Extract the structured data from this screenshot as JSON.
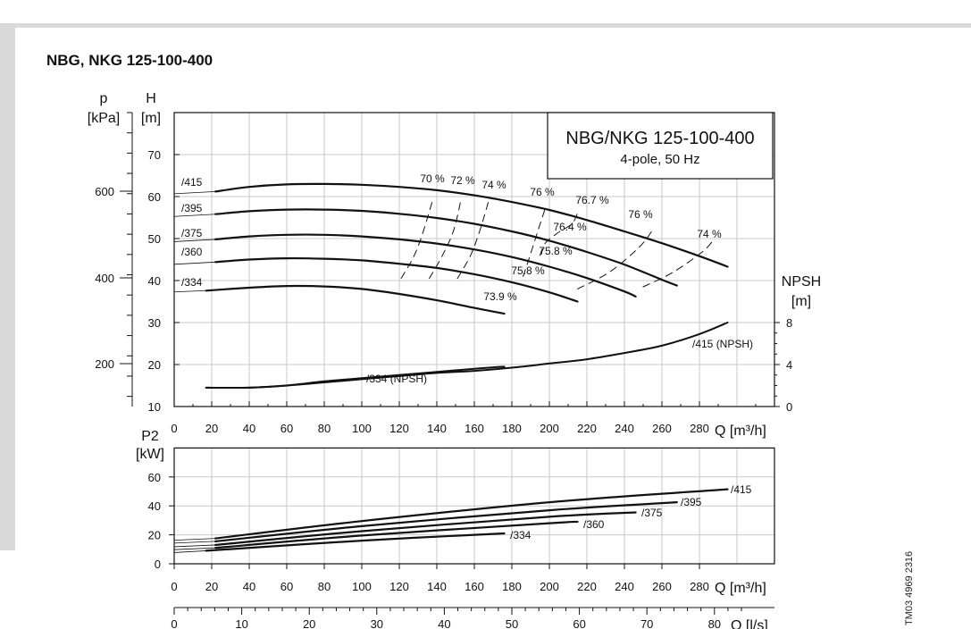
{
  "title": "NBG, NKG 125-100-400",
  "doc_code": "TM03 4969 2316",
  "colors": {
    "curve": "#111111",
    "grid": "#c8c8c8",
    "band": "#d9d9d9"
  },
  "chart_data": [
    {
      "type": "line",
      "name": "head",
      "title": "NBG/NKG 125-100-400",
      "subtitle": "4-pole, 50 Hz",
      "xlabel": "Q [m³/h]",
      "ylabel": "H [m]",
      "ylabel_parts": [
        "H",
        "[m]"
      ],
      "ylabel2_parts": [
        "p",
        "[kPa]"
      ],
      "xlim": [
        0,
        320
      ],
      "ylim": [
        10,
        80
      ],
      "x_ticks": [
        0,
        20,
        40,
        60,
        80,
        100,
        120,
        140,
        160,
        180,
        200,
        220,
        240,
        260,
        280
      ],
      "y_ticks": [
        10,
        20,
        30,
        40,
        50,
        60,
        70
      ],
      "p_ticks": [
        200,
        400,
        600
      ],
      "grid": true,
      "series": [
        {
          "name": "/415",
          "x": [
            22,
            40,
            60,
            80,
            100,
            120,
            140,
            160,
            180,
            200,
            220,
            240,
            260,
            280,
            295
          ],
          "y": [
            61.2,
            62.3,
            62.9,
            63.0,
            62.8,
            62.3,
            61.5,
            60.3,
            58.7,
            56.8,
            54.4,
            51.7,
            48.9,
            45.8,
            43.3
          ]
        },
        {
          "name": "/395",
          "x": [
            22,
            40,
            60,
            80,
            100,
            120,
            140,
            160,
            180,
            200,
            220,
            240,
            260,
            268
          ],
          "y": [
            55.8,
            56.5,
            56.9,
            56.9,
            56.6,
            55.9,
            54.9,
            53.5,
            51.7,
            49.5,
            46.8,
            43.8,
            40.2,
            38.8
          ]
        },
        {
          "name": "/375",
          "x": [
            22,
            40,
            60,
            80,
            100,
            120,
            140,
            160,
            180,
            200,
            220,
            240,
            246
          ],
          "y": [
            49.8,
            50.5,
            50.9,
            50.9,
            50.5,
            49.8,
            48.8,
            47.4,
            45.6,
            43.3,
            40.6,
            37.4,
            36.2
          ]
        },
        {
          "name": "/360",
          "x": [
            22,
            40,
            60,
            80,
            100,
            120,
            140,
            160,
            180,
            200,
            215
          ],
          "y": [
            44.4,
            45.0,
            45.3,
            45.2,
            44.8,
            44.0,
            43.0,
            41.5,
            39.6,
            37.2,
            35.0
          ]
        },
        {
          "name": "/334",
          "x": [
            17,
            40,
            60,
            80,
            100,
            120,
            140,
            160,
            176
          ],
          "y": [
            37.6,
            38.3,
            38.7,
            38.6,
            38.0,
            36.8,
            35.3,
            33.5,
            32.1
          ]
        },
        {
          "name": "/415 (NPSH)",
          "axis": "npsh",
          "x": [
            17,
            40,
            60,
            80,
            100,
            120,
            140,
            160,
            180,
            200,
            220,
            240,
            260,
            280,
            295
          ],
          "y": [
            1.8,
            1.8,
            2.0,
            2.3,
            2.6,
            2.9,
            3.2,
            3.4,
            3.7,
            4.1,
            4.5,
            5.1,
            5.8,
            6.9,
            8.0
          ]
        },
        {
          "name": "/334 (NPSH)",
          "axis": "npsh",
          "x": [
            17,
            40,
            60,
            80,
            100,
            120,
            140,
            160,
            176
          ],
          "y": [
            1.8,
            1.8,
            2.0,
            2.4,
            2.7,
            3.0,
            3.3,
            3.6,
            3.8
          ]
        }
      ],
      "efficiency_labels": [
        "70 %",
        "72 %",
        "74 %",
        "76 %",
        "76.7 %",
        "76 %",
        "74 %",
        "76.4 %",
        "75.8 %",
        "75.8 %",
        "73.9 %"
      ],
      "efficiency_contours": [
        {
          "x": [
            121,
            128,
            133,
            138
          ],
          "y": [
            40.5,
            46,
            52,
            59.5
          ]
        },
        {
          "x": [
            136,
            143,
            149,
            153
          ],
          "y": [
            40.5,
            46,
            52,
            59.5
          ]
        },
        {
          "x": [
            151,
            158,
            163,
            168
          ],
          "y": [
            40.5,
            46,
            52,
            59.5
          ]
        },
        {
          "x": [
            186,
            189,
            194,
            198
          ],
          "y": [
            41.0,
            45.0,
            52.0,
            57.5
          ]
        },
        {
          "x": [
            195,
            198,
            205,
            212,
            215
          ],
          "y": [
            46,
            49,
            51.5,
            53.5,
            56
          ]
        },
        {
          "x": [
            215,
            232,
            248,
            255
          ],
          "y": [
            38,
            42,
            48,
            52
          ]
        },
        {
          "x": [
            250,
            266,
            282,
            288
          ],
          "y": [
            38.5,
            42,
            47,
            50
          ]
        }
      ],
      "npsh_axis": {
        "label": "NPSH [m]",
        "label_parts": [
          "NPSH",
          "[m]"
        ],
        "ticks": [
          0,
          4,
          8
        ],
        "range": [
          0,
          8
        ]
      }
    },
    {
      "type": "line",
      "name": "power",
      "xlabel": "Q [m³/h]",
      "ylabel": "P2 [kW]",
      "ylabel_parts": [
        "P2",
        "[kW]"
      ],
      "xlim": [
        0,
        320
      ],
      "ylim": [
        0,
        80
      ],
      "x_ticks": [
        0,
        20,
        40,
        60,
        80,
        100,
        120,
        140,
        160,
        180,
        200,
        220,
        240,
        260,
        280
      ],
      "y_ticks": [
        0,
        20,
        40,
        60
      ],
      "grid": true,
      "series": [
        {
          "name": "/415",
          "x": [
            22,
            100,
            200,
            295
          ],
          "y": [
            17.5,
            29.5,
            42.5,
            51.5
          ]
        },
        {
          "name": "/395",
          "x": [
            22,
            100,
            200,
            268
          ],
          "y": [
            15.5,
            26.0,
            37.0,
            42.5
          ]
        },
        {
          "name": "/375",
          "x": [
            22,
            100,
            200,
            246
          ],
          "y": [
            13.0,
            22.5,
            32.5,
            35.5
          ]
        },
        {
          "name": "/360",
          "x": [
            22,
            100,
            200,
            215
          ],
          "y": [
            11.0,
            19.5,
            28.0,
            29.0
          ]
        },
        {
          "name": "/334",
          "x": [
            17,
            100,
            176
          ],
          "y": [
            9.0,
            16.0,
            21.0
          ]
        }
      ]
    },
    {
      "type": "axis",
      "name": "flow-ls",
      "xlabel": "Q [l/s]",
      "x_ticks": [
        0,
        10,
        20,
        30,
        40,
        50,
        60,
        70,
        80
      ]
    }
  ]
}
